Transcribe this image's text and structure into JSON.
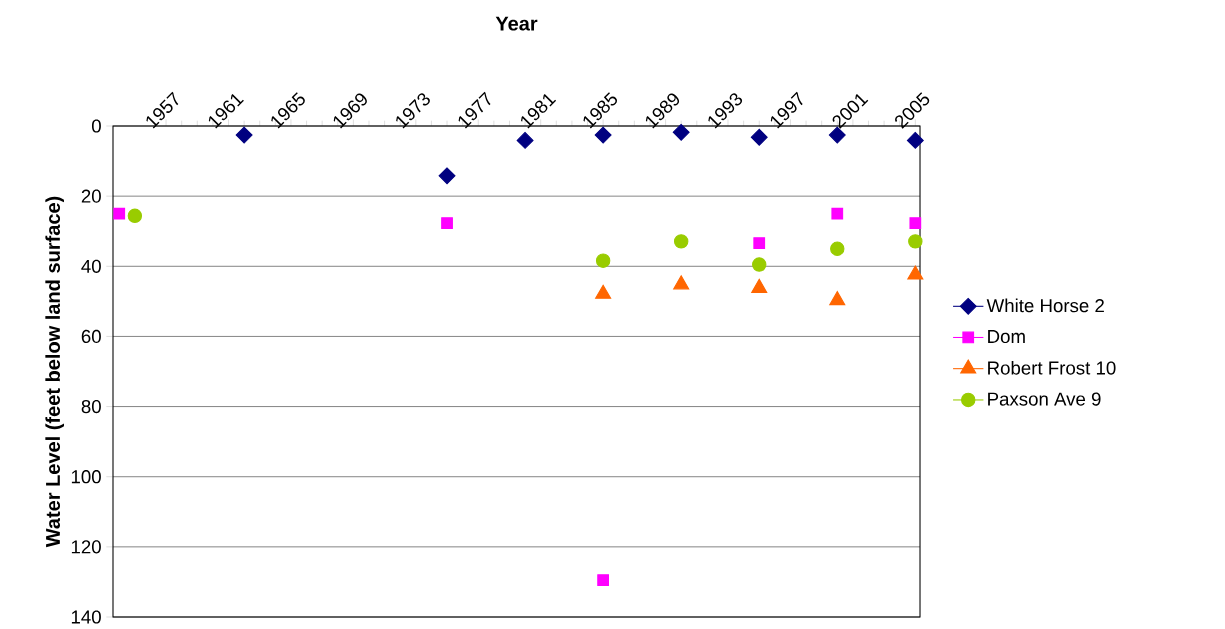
{
  "chart_data": {
    "type": "scatter",
    "xlabel": "Year",
    "ylabel": "Water Level (feet below land surface)",
    "xlim": [
      1953.6,
      2005.3
    ],
    "xticks": [
      1957,
      1961,
      1965,
      1969,
      1973,
      1977,
      1981,
      1985,
      1989,
      1993,
      1997,
      2001,
      2005
    ],
    "ylim": [
      140,
      0
    ],
    "yticks": [
      0,
      20,
      40,
      60,
      80,
      100,
      120,
      140
    ],
    "grid": "y",
    "legend": "right",
    "series": [
      {
        "name": "White Horse 2",
        "color": "#000080",
        "marker": "diamond",
        "x": [
          1962,
          1975,
          1980,
          1985,
          1990,
          1995,
          2000,
          2005
        ],
        "values": [
          2.6,
          14.2,
          4.1,
          2.6,
          1.8,
          3.2,
          2.6,
          4.1
        ]
      },
      {
        "name": "Dom",
        "color": "#ff00ff",
        "marker": "square",
        "x": [
          1954,
          1975,
          1985,
          1995,
          2000,
          2005
        ],
        "values": [
          25.0,
          27.7,
          129.5,
          33.4,
          25.0,
          27.7
        ]
      },
      {
        "name": "Robert Frost 10",
        "color": "#ff6600",
        "marker": "triangle",
        "x": [
          1985,
          1990,
          1995,
          2000,
          2005
        ],
        "values": [
          47.9,
          45.2,
          46.2,
          49.7,
          42.4
        ]
      },
      {
        "name": "Paxson Ave 9",
        "color": "#99cc00",
        "marker": "circle",
        "x": [
          1955,
          1985,
          1990,
          1995,
          2000,
          2005
        ],
        "values": [
          25.6,
          38.4,
          32.9,
          39.5,
          35.0,
          32.9
        ]
      }
    ]
  }
}
